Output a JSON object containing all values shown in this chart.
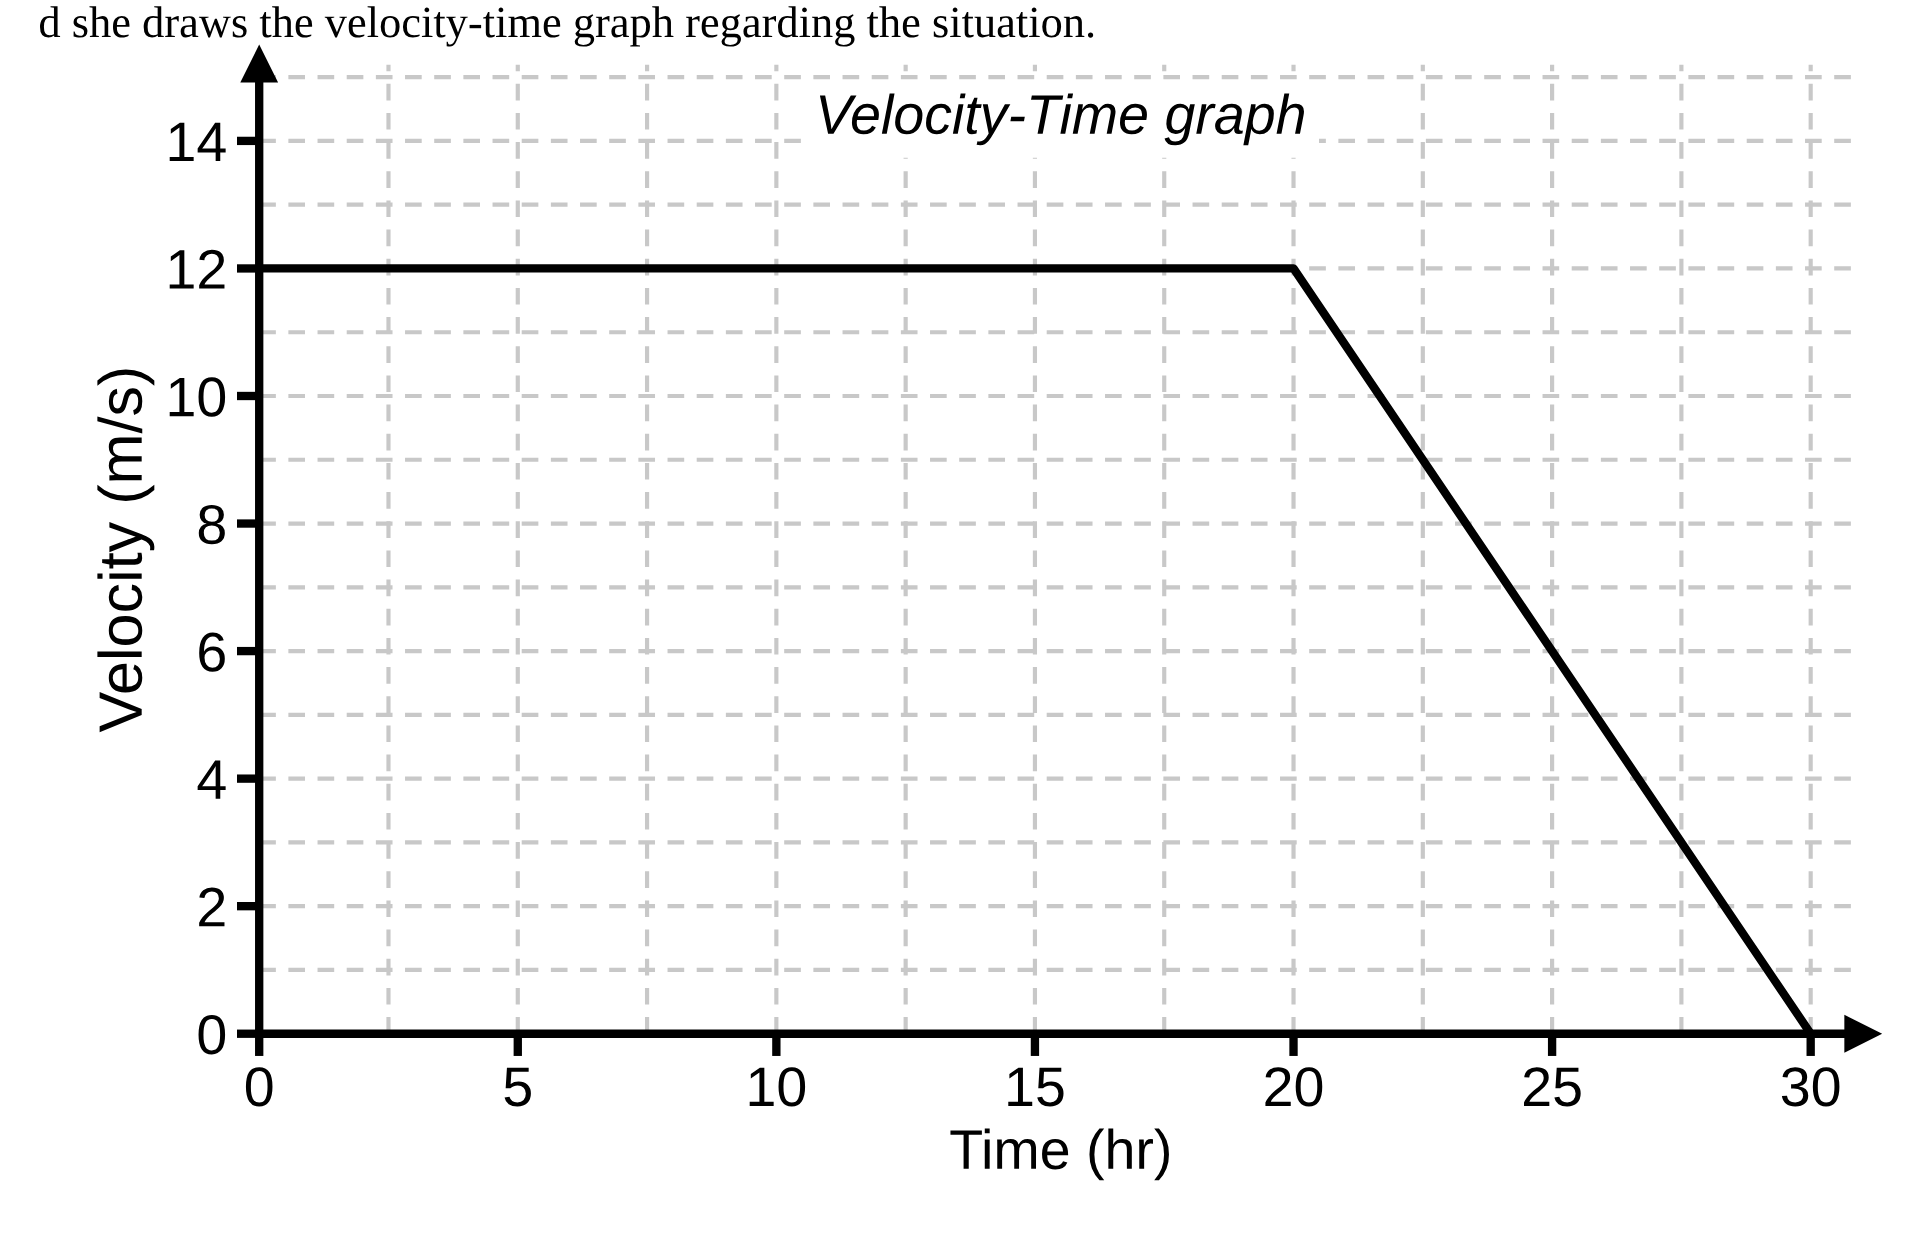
{
  "chart_data": {
    "type": "line",
    "title": "Velocity-Time graph",
    "xlabel": "Time (hr)",
    "ylabel": "Velocity (m/s)",
    "annotations": [
      "d she draws the velocity-time graph regarding the situation."
    ],
    "x": [
      0,
      20,
      30
    ],
    "series": [
      {
        "color": "#000000",
        "values": [
          12,
          12,
          0
        ]
      }
    ],
    "xlim": [
      0,
      31
    ],
    "ylim": [
      0,
      15.2
    ],
    "xticks": [
      0,
      5,
      10,
      15,
      20,
      25,
      30
    ],
    "yticks": [
      0,
      2,
      4,
      6,
      8,
      10,
      12,
      14
    ],
    "grid": true,
    "marker": "none",
    "line_style": "solid",
    "legend": false
  }
}
